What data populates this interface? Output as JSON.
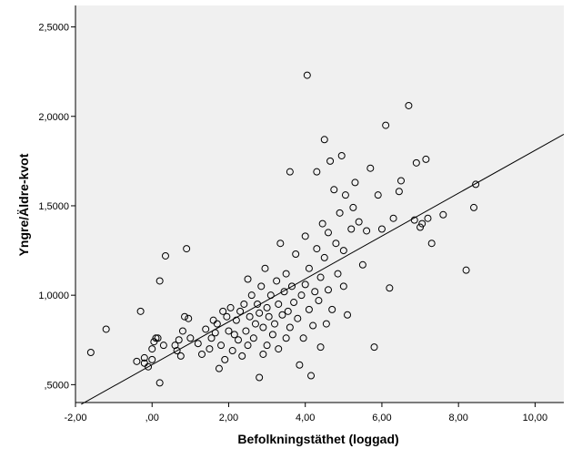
{
  "chart_data": {
    "type": "scatter",
    "xlabel": "Befolkningstäthet (loggad)",
    "ylabel": "Yngre/Äldre-kvot",
    "xlim": [
      -2.0,
      10.75
    ],
    "ylim": [
      0.4,
      2.62
    ],
    "x_ticks": [
      -2,
      0,
      2,
      4,
      6,
      8,
      10
    ],
    "x_tick_labels": [
      "-2,00",
      ",00",
      "2,00",
      "4,00",
      "6,00",
      "8,00",
      "10,00"
    ],
    "y_ticks": [
      0.5,
      1.0,
      1.5,
      2.0,
      2.5
    ],
    "y_tick_labels": [
      ",5000",
      "1,0000",
      "1,5000",
      "2,0000",
      "2,5000"
    ],
    "grid": false,
    "background": "#f0f0f0",
    "marker": "open-circle",
    "fit_line": {
      "x0": -1.85,
      "y0": 0.39,
      "x1": 10.75,
      "y1": 1.9
    },
    "points": [
      [
        -1.6,
        0.68
      ],
      [
        -1.2,
        0.81
      ],
      [
        -0.4,
        0.63
      ],
      [
        -0.3,
        0.91
      ],
      [
        -0.2,
        0.65
      ],
      [
        -0.2,
        0.62
      ],
      [
        -0.1,
        0.6
      ],
      [
        0.0,
        0.64
      ],
      [
        0.0,
        0.7
      ],
      [
        0.05,
        0.74
      ],
      [
        0.1,
        0.76
      ],
      [
        0.15,
        0.76
      ],
      [
        0.2,
        0.51
      ],
      [
        0.2,
        1.08
      ],
      [
        0.3,
        0.72
      ],
      [
        0.35,
        1.22
      ],
      [
        0.6,
        0.72
      ],
      [
        0.65,
        0.69
      ],
      [
        0.7,
        0.75
      ],
      [
        0.75,
        0.66
      ],
      [
        0.8,
        0.8
      ],
      [
        0.85,
        0.88
      ],
      [
        0.9,
        1.26
      ],
      [
        0.95,
        0.87
      ],
      [
        1.0,
        0.76
      ],
      [
        1.2,
        0.73
      ],
      [
        1.3,
        0.67
      ],
      [
        1.4,
        0.81
      ],
      [
        1.5,
        0.7
      ],
      [
        1.55,
        0.76
      ],
      [
        1.6,
        0.86
      ],
      [
        1.65,
        0.79
      ],
      [
        1.7,
        0.84
      ],
      [
        1.75,
        0.59
      ],
      [
        1.8,
        0.72
      ],
      [
        1.85,
        0.91
      ],
      [
        1.9,
        0.64
      ],
      [
        1.95,
        0.88
      ],
      [
        2.0,
        0.8
      ],
      [
        2.05,
        0.93
      ],
      [
        2.1,
        0.69
      ],
      [
        2.15,
        0.78
      ],
      [
        2.2,
        0.86
      ],
      [
        2.25,
        0.75
      ],
      [
        2.3,
        0.91
      ],
      [
        2.35,
        0.66
      ],
      [
        2.4,
        0.95
      ],
      [
        2.45,
        0.8
      ],
      [
        2.5,
        0.72
      ],
      [
        2.5,
        1.09
      ],
      [
        2.55,
        0.88
      ],
      [
        2.6,
        1.0
      ],
      [
        2.65,
        0.76
      ],
      [
        2.7,
        0.84
      ],
      [
        2.75,
        0.95
      ],
      [
        2.8,
        0.54
      ],
      [
        2.8,
        0.9
      ],
      [
        2.85,
        1.05
      ],
      [
        2.9,
        0.67
      ],
      [
        2.9,
        0.82
      ],
      [
        2.95,
        1.15
      ],
      [
        3.0,
        0.72
      ],
      [
        3.0,
        0.93
      ],
      [
        3.05,
        0.88
      ],
      [
        3.1,
        1.0
      ],
      [
        3.15,
        0.78
      ],
      [
        3.2,
        0.84
      ],
      [
        3.25,
        1.08
      ],
      [
        3.3,
        0.7
      ],
      [
        3.3,
        0.95
      ],
      [
        3.35,
        1.29
      ],
      [
        3.4,
        0.89
      ],
      [
        3.45,
        1.02
      ],
      [
        3.5,
        0.76
      ],
      [
        3.5,
        1.12
      ],
      [
        3.55,
        0.91
      ],
      [
        3.6,
        1.69
      ],
      [
        3.6,
        0.82
      ],
      [
        3.65,
        1.05
      ],
      [
        3.7,
        0.96
      ],
      [
        3.75,
        1.23
      ],
      [
        3.8,
        0.87
      ],
      [
        3.85,
        0.61
      ],
      [
        3.9,
        1.0
      ],
      [
        3.95,
        0.76
      ],
      [
        4.0,
        1.06
      ],
      [
        4.0,
        1.33
      ],
      [
        4.05,
        2.23
      ],
      [
        4.1,
        0.92
      ],
      [
        4.1,
        1.15
      ],
      [
        4.15,
        0.55
      ],
      [
        4.2,
        0.83
      ],
      [
        4.25,
        1.02
      ],
      [
        4.3,
        1.26
      ],
      [
        4.3,
        1.69
      ],
      [
        4.35,
        0.97
      ],
      [
        4.4,
        0.71
      ],
      [
        4.4,
        1.1
      ],
      [
        4.45,
        1.4
      ],
      [
        4.5,
        1.21
      ],
      [
        4.5,
        1.87
      ],
      [
        4.55,
        0.84
      ],
      [
        4.6,
        1.03
      ],
      [
        4.6,
        1.35
      ],
      [
        4.65,
        1.75
      ],
      [
        4.7,
        0.92
      ],
      [
        4.75,
        1.59
      ],
      [
        4.8,
        1.29
      ],
      [
        4.85,
        1.12
      ],
      [
        4.9,
        1.46
      ],
      [
        4.95,
        1.78
      ],
      [
        5.0,
        1.05
      ],
      [
        5.0,
        1.25
      ],
      [
        5.05,
        1.56
      ],
      [
        5.1,
        0.89
      ],
      [
        5.2,
        1.37
      ],
      [
        5.25,
        1.49
      ],
      [
        5.3,
        1.63
      ],
      [
        5.4,
        1.41
      ],
      [
        5.5,
        1.17
      ],
      [
        5.6,
        1.36
      ],
      [
        5.7,
        1.71
      ],
      [
        5.8,
        0.71
      ],
      [
        5.9,
        1.56
      ],
      [
        6.0,
        1.37
      ],
      [
        6.1,
        1.95
      ],
      [
        6.2,
        1.04
      ],
      [
        6.3,
        1.43
      ],
      [
        6.45,
        1.58
      ],
      [
        6.5,
        1.64
      ],
      [
        6.7,
        2.06
      ],
      [
        6.85,
        1.42
      ],
      [
        6.9,
        1.74
      ],
      [
        7.0,
        1.38
      ],
      [
        7.05,
        1.4
      ],
      [
        7.15,
        1.76
      ],
      [
        7.2,
        1.43
      ],
      [
        7.3,
        1.29
      ],
      [
        7.6,
        1.45
      ],
      [
        8.2,
        1.14
      ],
      [
        8.4,
        1.49
      ],
      [
        8.45,
        1.62
      ]
    ]
  }
}
